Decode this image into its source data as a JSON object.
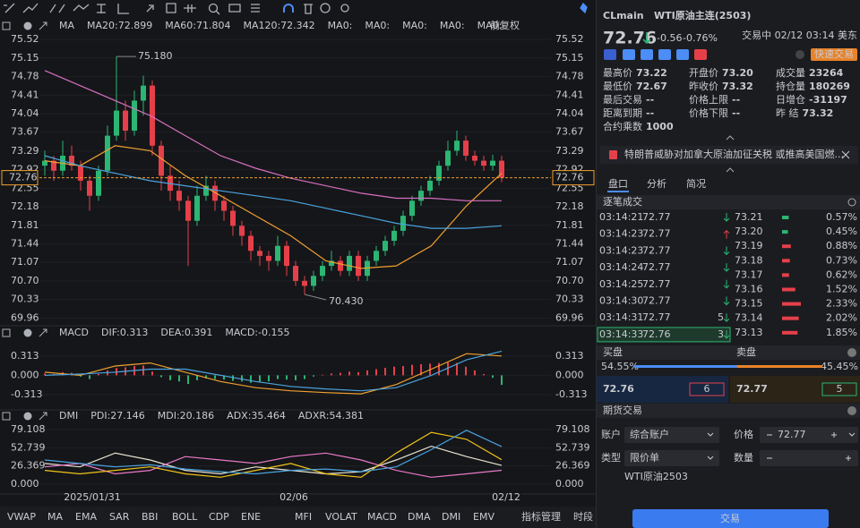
{
  "chart_data": [
    {
      "type": "candlestick",
      "indicator": "MA",
      "series": [
        {
          "name": "MA20:72.899",
          "color": "#f0a030",
          "values": [
            73.1,
            73.0,
            73.4,
            73.3,
            72.8,
            72.4,
            72.0,
            71.6,
            71.1,
            70.95,
            71.0,
            71.4,
            72.2,
            72.85
          ]
        },
        {
          "name": "MA60:71.804",
          "color": "#4aa3df",
          "values": [
            73.2,
            73.0,
            72.85,
            72.7,
            72.6,
            72.5,
            72.4,
            72.3,
            72.15,
            72.0,
            71.85,
            71.75,
            71.75,
            71.8
          ]
        },
        {
          "name": "MA120:72.342",
          "color": "#d66fc0",
          "values": [
            74.9,
            74.6,
            74.3,
            74.0,
            73.6,
            73.2,
            72.95,
            72.75,
            72.6,
            72.45,
            72.35,
            72.35,
            72.3,
            72.3
          ]
        }
      ],
      "inactive_legend": [
        "MA0:",
        "MA0:",
        "MA0:",
        "MA0:",
        "MA0:"
      ],
      "adjustment": "前复权",
      "up_color": "#2bb673",
      "down_color": "#e5404a",
      "candles": [
        [
          73.0,
          73.3,
          72.8,
          73.1
        ],
        [
          73.1,
          73.2,
          72.7,
          72.9
        ],
        [
          72.9,
          73.5,
          72.8,
          73.2
        ],
        [
          73.2,
          73.4,
          72.9,
          73.0
        ],
        [
          73.0,
          73.1,
          72.5,
          72.7
        ],
        [
          72.7,
          72.8,
          72.1,
          72.4
        ],
        [
          72.4,
          73.0,
          72.3,
          72.9
        ],
        [
          72.9,
          73.8,
          72.8,
          73.6
        ],
        [
          73.6,
          75.18,
          73.5,
          74.1
        ],
        [
          74.1,
          74.3,
          73.5,
          73.7
        ],
        [
          73.7,
          74.5,
          73.6,
          74.3
        ],
        [
          74.3,
          74.8,
          74.0,
          74.6
        ],
        [
          74.6,
          74.7,
          73.2,
          73.4
        ],
        [
          73.4,
          73.5,
          72.5,
          72.8
        ],
        [
          72.8,
          73.0,
          72.3,
          72.5
        ],
        [
          72.5,
          72.7,
          72.1,
          72.3
        ],
        [
          72.3,
          72.4,
          71.0,
          71.9
        ],
        [
          71.9,
          72.6,
          71.8,
          72.4
        ],
        [
          72.4,
          72.8,
          72.3,
          72.6
        ],
        [
          72.6,
          72.7,
          72.1,
          72.3
        ],
        [
          72.3,
          72.4,
          71.9,
          72.1
        ],
        [
          72.1,
          72.2,
          71.6,
          71.8
        ],
        [
          71.8,
          71.9,
          71.4,
          71.6
        ],
        [
          71.6,
          71.7,
          71.1,
          71.3
        ],
        [
          71.3,
          71.4,
          71.0,
          71.2
        ],
        [
          71.2,
          71.3,
          70.9,
          71.1
        ],
        [
          71.1,
          71.6,
          71.0,
          71.4
        ],
        [
          71.4,
          71.5,
          70.8,
          71.0
        ],
        [
          71.0,
          71.1,
          70.6,
          70.7
        ],
        [
          70.7,
          70.8,
          70.43,
          70.6
        ],
        [
          70.6,
          70.9,
          70.5,
          70.8
        ],
        [
          70.8,
          71.1,
          70.7,
          71.0
        ],
        [
          71.0,
          71.3,
          70.9,
          71.1
        ],
        [
          71.1,
          71.2,
          70.8,
          70.9
        ],
        [
          70.9,
          71.3,
          70.8,
          71.2
        ],
        [
          71.2,
          71.3,
          70.7,
          70.8
        ],
        [
          70.8,
          71.2,
          70.7,
          71.1
        ],
        [
          71.1,
          71.4,
          71.0,
          71.3
        ],
        [
          71.3,
          71.6,
          71.2,
          71.5
        ],
        [
          71.5,
          71.8,
          71.4,
          71.7
        ],
        [
          71.7,
          72.1,
          71.6,
          72.0
        ],
        [
          72.0,
          72.4,
          71.9,
          72.3
        ],
        [
          72.3,
          72.6,
          72.2,
          72.5
        ],
        [
          72.5,
          72.8,
          72.4,
          72.7
        ],
        [
          72.7,
          73.1,
          72.6,
          73.0
        ],
        [
          73.0,
          73.5,
          72.9,
          73.3
        ],
        [
          73.3,
          73.7,
          73.2,
          73.5
        ],
        [
          73.5,
          73.6,
          73.1,
          73.2
        ],
        [
          73.2,
          73.3,
          73.0,
          73.1
        ],
        [
          73.1,
          73.2,
          72.9,
          73.0
        ],
        [
          73.0,
          73.22,
          72.9,
          73.1
        ],
        [
          73.1,
          73.2,
          72.67,
          72.76
        ]
      ],
      "high_label": {
        "value": 75.18,
        "label": "75.180"
      },
      "low_label": {
        "value": 70.43,
        "label": "70.430"
      },
      "last_price": 72.76,
      "last_price_color": "#f0a030",
      "ylim": [
        69.84,
        75.63
      ],
      "yticks": [
        75.52,
        75.15,
        74.78,
        74.41,
        74.04,
        73.67,
        73.29,
        72.92,
        72.55,
        72.18,
        71.81,
        71.44,
        71.07,
        {
          "value": 70.7,
          "label": "70.70"
        },
        70.33,
        69.96
      ]
    },
    {
      "type": "macd",
      "indicator": "MACD",
      "series": [
        {
          "name": "DIF:0.313",
          "color": "#f0a030",
          "values": [
            0.05,
            0.0,
            0.15,
            0.2,
            0.05,
            -0.1,
            -0.2,
            -0.25,
            -0.28,
            -0.3,
            -0.15,
            0.1,
            0.35,
            0.313
          ]
        },
        {
          "name": "DEA:0.391",
          "color": "#4aa3df",
          "values": [
            0.0,
            0.02,
            0.05,
            0.1,
            0.1,
            0.0,
            -0.1,
            -0.18,
            -0.22,
            -0.25,
            -0.2,
            0.0,
            0.25,
            0.391
          ]
        }
      ],
      "histogram": {
        "name": "MACD:-0.155",
        "color": "#d66fc0",
        "up_color": "#e5404a",
        "down_color": "#2bb673",
        "values": [
          0.03,
          0.02,
          0.05,
          0.04,
          -0.02,
          -0.06,
          0.02,
          0.08,
          0.12,
          0.13,
          0.15,
          0.16,
          0.06,
          -0.03,
          -0.08,
          -0.1,
          -0.14,
          -0.08,
          -0.05,
          -0.06,
          -0.07,
          -0.09,
          -0.1,
          -0.12,
          -0.11,
          -0.1,
          -0.06,
          -0.07,
          -0.08,
          -0.06,
          -0.02,
          0.01,
          0.03,
          0.04,
          0.06,
          0.05,
          0.08,
          0.1,
          0.12,
          0.14,
          0.15,
          0.17,
          0.18,
          0.19,
          0.2,
          0.21,
          0.2,
          0.14,
          0.08,
          0.02,
          -0.04,
          -0.155
        ]
      },
      "ylim": [
        -0.53,
        0.57
      ],
      "yticks": [
        0.313,
        {
          "value": 0,
          "label": "0.000"
        },
        -0.313
      ]
    },
    {
      "type": "dmi",
      "indicator": "DMI",
      "series": [
        {
          "name": "PDI:27.146",
          "color": "#e8e2d0",
          "values": [
            30,
            25,
            45,
            35,
            20,
            15,
            25,
            20,
            15,
            18,
            35,
            55,
            40,
            27.146
          ]
        },
        {
          "name": "MDI:20.186",
          "color": "#e879c8",
          "values": [
            25,
            30,
            15,
            20,
            40,
            35,
            30,
            40,
            45,
            35,
            20,
            10,
            15,
            20.186
          ]
        },
        {
          "name": "ADX:35.464",
          "color": "#f0c419",
          "values": [
            20,
            15,
            20,
            25,
            15,
            10,
            20,
            30,
            15,
            10,
            45,
            75,
            65,
            35.464
          ]
        },
        {
          "name": "ADXR:54.381",
          "color": "#4aa3df",
          "values": [
            35,
            30,
            25,
            28,
            22,
            18,
            15,
            20,
            22,
            18,
            25,
            50,
            78,
            54.381
          ]
        }
      ],
      "ylim": [
        -9,
        92
      ],
      "yticks": [
        79.108,
        52.739,
        26.369,
        {
          "value": 0,
          "label": "0.000"
        }
      ],
      "x_labels": [
        "2025/01/31",
        "02/06",
        "02/12"
      ]
    }
  ],
  "indicator_tabs": {
    "items": [
      "VWAP",
      "MA",
      "EMA",
      "SAR",
      "BBI",
      "BOLL",
      "CDP",
      "ENE",
      "MFI",
      "VOLAT",
      "MACD",
      "DMA",
      "DMI",
      "EMV",
      "指标管理",
      "时段"
    ],
    "active_indices": [
      1,
      10,
      12,
      14
    ]
  },
  "quote": {
    "symbol": "CLmain",
    "name": "WTI原油主连(2503)",
    "status": "交易中 02/12 03:14 美东",
    "price": "72.76",
    "change": "-0.56",
    "change_pct": "-0.76%",
    "quick_trade": "快速交易",
    "stats": [
      {
        "label": "最高价",
        "value": "73.22",
        "color": "#2bb673"
      },
      {
        "label": "开盘价",
        "value": "73.20",
        "color": "#2bb673"
      },
      {
        "label": "成交量",
        "value": "23264"
      },
      {
        "label": "最低价",
        "value": "72.67",
        "color": "#2bb673"
      },
      {
        "label": "昨收价",
        "value": "73.32"
      },
      {
        "label": "持仓量",
        "value": "180269"
      },
      {
        "label": "最后交易",
        "value": "--"
      },
      {
        "label": "价格上限",
        "value": "--"
      },
      {
        "label": "日增仓",
        "value": "-31197",
        "color": "#2bb673"
      },
      {
        "label": "距离到期",
        "value": "--"
      },
      {
        "label": "价格下限",
        "value": "--"
      },
      {
        "label": "昨  结",
        "value": "73.32"
      },
      {
        "label": "合约乘数",
        "value": "1000"
      }
    ]
  },
  "news": "特朗普威胁对加拿大原油加征关税 或推高美国燃...",
  "tabs": [
    "盘口",
    "分析",
    "简况"
  ],
  "trades": {
    "title": "逐笔成交",
    "rows": [
      {
        "time": "03:14:21",
        "price": "72.77",
        "dir": "down"
      },
      {
        "time": "03:14:23",
        "price": "72.77",
        "dir": "up"
      },
      {
        "time": "03:14:23",
        "price": "72.77",
        "dir": "down"
      },
      {
        "time": "03:14:24",
        "price": "72.77",
        "dir": "down"
      },
      {
        "time": "03:14:25",
        "price": "72.77",
        "dir": "down"
      },
      {
        "time": "03:14:30",
        "price": "72.77",
        "dir": "down"
      },
      {
        "time": "03:14:31",
        "price": "72.77",
        "dir": "down",
        "qty": "5"
      },
      {
        "time": "03:14:33",
        "price": "72.76",
        "dir": "down",
        "qty": "3"
      }
    ],
    "distribution": {
      "prices": [
        "73.21",
        "73.20",
        "73.19",
        "73.18",
        "73.17",
        "73.16",
        "73.15",
        "73.14",
        "73.13"
      ],
      "values": [
        0.57,
        0.45,
        0.88,
        0.73,
        0.62,
        1.52,
        2.33,
        2.02,
        1.85
      ],
      "value_labels": [
        "0.57%",
        "0.45%",
        "0.88%",
        "0.73%",
        "0.62%",
        "1.52%",
        "2.33%",
        "2.02%",
        "1.85%"
      ]
    }
  },
  "order_book": {
    "bid_title": "买盘",
    "ask_title": "卖盘",
    "bid_share": 54.55,
    "bid_share_label": "54.55%",
    "ask_share": 45.45,
    "ask_share_label": "45.45%",
    "bid_price": "72.76",
    "bid_qty": "6",
    "ask_price": "72.77",
    "ask_qty": "5"
  },
  "order_form": {
    "title": "期货交易",
    "account_label": "账户",
    "account": "综合账户",
    "price_label": "价格",
    "price": "72.77",
    "type_label": "类型",
    "order_type": "限价单",
    "qty_label": "数量",
    "contract": "WTI原油2503",
    "submit": "交易"
  }
}
